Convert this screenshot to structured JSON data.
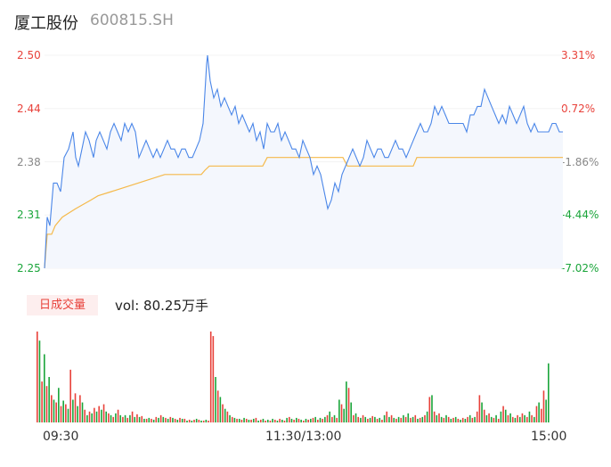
{
  "header": {
    "name": "厦工股份",
    "code": "600815.SH"
  },
  "price_axis": [
    {
      "price": "2.50",
      "pct": "3.31%",
      "price_color": "#e8413a",
      "pct_color": "#e8413a"
    },
    {
      "price": "2.44",
      "pct": "0.72%",
      "price_color": "#e8413a",
      "pct_color": "#e8413a"
    },
    {
      "price": "2.38",
      "pct": "-1.86%",
      "price_color": "#888888",
      "pct_color": "#888888"
    },
    {
      "price": "2.31",
      "pct": "-4.44%",
      "price_color": "#1aa53a",
      "pct_color": "#1aa53a"
    },
    {
      "price": "2.25",
      "pct": "-7.02%",
      "price_color": "#1aa53a",
      "pct_color": "#1aa53a"
    }
  ],
  "volume": {
    "badge": "日成交量",
    "label": "vol: 80.25万手"
  },
  "time_axis": [
    "09:30",
    "11:30/13:00",
    "15:00"
  ],
  "colors": {
    "price_line": "#4a86e8",
    "avg_line": "#f5b94a",
    "up": "#e8413a",
    "down": "#1aa53a",
    "fill": "#f4f7fd"
  },
  "chart_data": {
    "type": "line",
    "ylim": [
      2.25,
      2.5
    ],
    "series": [
      {
        "x": [
          0,
          3,
          6,
          10,
          14,
          18,
          22,
          27,
          32,
          35,
          38,
          42,
          46,
          50,
          55,
          58,
          62,
          66,
          70,
          74,
          78,
          82,
          86,
          90,
          94,
          98,
          102,
          106,
          110,
          114,
          118,
          122,
          126,
          130,
          134,
          138,
          142,
          146,
          150,
          154,
          158,
          162,
          166,
          170,
          174,
          178,
          182,
          183,
          186,
          190,
          194,
          198,
          202,
          206,
          210,
          214,
          218,
          222,
          226,
          230,
          234,
          238,
          242,
          246,
          250,
          254,
          258,
          262,
          266,
          270,
          274,
          278,
          282,
          286,
          290,
          294,
          298,
          302,
          306,
          310,
          314,
          318,
          322,
          326,
          330,
          334,
          338,
          342,
          346,
          350,
          354,
          358,
          362,
          366,
          370,
          374,
          378,
          382,
          386,
          390,
          394,
          398,
          402,
          406,
          410,
          414,
          418,
          422,
          426,
          430,
          434,
          438,
          442,
          446,
          450,
          454,
          458,
          462,
          466,
          470,
          474,
          478,
          482,
          486,
          490,
          494,
          498,
          502,
          506,
          510,
          514,
          518,
          522,
          526,
          530,
          534,
          538,
          542,
          546,
          550,
          554,
          558,
          562,
          566,
          570,
          574,
          578,
          582
        ],
        "values": [
          2.25,
          2.31,
          2.3,
          2.35,
          2.35,
          2.34,
          2.38,
          2.39,
          2.41,
          2.38,
          2.37,
          2.39,
          2.41,
          2.4,
          2.38,
          2.4,
          2.41,
          2.4,
          2.39,
          2.41,
          2.42,
          2.41,
          2.4,
          2.42,
          2.41,
          2.42,
          2.41,
          2.38,
          2.39,
          2.4,
          2.39,
          2.38,
          2.39,
          2.38,
          2.39,
          2.4,
          2.39,
          2.39,
          2.38,
          2.39,
          2.39,
          2.38,
          2.38,
          2.39,
          2.4,
          2.42,
          2.49,
          2.5,
          2.47,
          2.45,
          2.46,
          2.44,
          2.45,
          2.44,
          2.43,
          2.44,
          2.42,
          2.43,
          2.42,
          2.41,
          2.42,
          2.4,
          2.41,
          2.39,
          2.42,
          2.41,
          2.41,
          2.42,
          2.4,
          2.41,
          2.4,
          2.39,
          2.39,
          2.38,
          2.4,
          2.39,
          2.38,
          2.36,
          2.37,
          2.36,
          2.34,
          2.32,
          2.33,
          2.35,
          2.34,
          2.36,
          2.37,
          2.38,
          2.39,
          2.38,
          2.37,
          2.38,
          2.4,
          2.39,
          2.38,
          2.39,
          2.39,
          2.38,
          2.38,
          2.39,
          2.4,
          2.39,
          2.39,
          2.38,
          2.39,
          2.4,
          2.41,
          2.42,
          2.41,
          2.41,
          2.42,
          2.44,
          2.43,
          2.44,
          2.43,
          2.42,
          2.42,
          2.42,
          2.42,
          2.42,
          2.41,
          2.43,
          2.43,
          2.44,
          2.44,
          2.46,
          2.45,
          2.44,
          2.43,
          2.42,
          2.43,
          2.42,
          2.44,
          2.43,
          2.42,
          2.43,
          2.44,
          2.42,
          2.41,
          2.42,
          2.41,
          2.41,
          2.41,
          2.41,
          2.42,
          2.42,
          2.41,
          2.41
        ]
      },
      {
        "x": [
          0,
          3,
          8,
          12,
          20,
          35,
          52,
          60,
          75,
          105,
          135,
          176,
          180,
          185,
          220,
          245,
          250,
          300,
          335,
          340,
          390,
          414,
          418,
          582
        ],
        "values": [
          2.25,
          2.29,
          2.29,
          2.3,
          2.31,
          2.32,
          2.33,
          2.335,
          2.34,
          2.35,
          2.36,
          2.36,
          2.365,
          2.37,
          2.37,
          2.37,
          2.38,
          2.38,
          2.38,
          2.37,
          2.37,
          2.37,
          2.38,
          2.38
        ]
      }
    ],
    "volume": [
      [
        100,
        1
      ],
      [
        90,
        0
      ],
      [
        45,
        1
      ],
      [
        75,
        0
      ],
      [
        40,
        1
      ],
      [
        50,
        0
      ],
      [
        30,
        1
      ],
      [
        25,
        0
      ],
      [
        22,
        1
      ],
      [
        38,
        0
      ],
      [
        18,
        1
      ],
      [
        24,
        0
      ],
      [
        20,
        1
      ],
      [
        15,
        0
      ],
      [
        58,
        1
      ],
      [
        25,
        0
      ],
      [
        32,
        1
      ],
      [
        18,
        0
      ],
      [
        30,
        1
      ],
      [
        22,
        0
      ],
      [
        14,
        1
      ],
      [
        8,
        0
      ],
      [
        12,
        1
      ],
      [
        10,
        0
      ],
      [
        16,
        1
      ],
      [
        12,
        0
      ],
      [
        18,
        1
      ],
      [
        14,
        0
      ],
      [
        20,
        1
      ],
      [
        12,
        0
      ],
      [
        10,
        1
      ],
      [
        8,
        0
      ],
      [
        6,
        1
      ],
      [
        10,
        0
      ],
      [
        14,
        1
      ],
      [
        8,
        0
      ],
      [
        6,
        1
      ],
      [
        8,
        0
      ],
      [
        5,
        1
      ],
      [
        8,
        0
      ],
      [
        12,
        1
      ],
      [
        6,
        0
      ],
      [
        9,
        1
      ],
      [
        6,
        0
      ],
      [
        7,
        1
      ],
      [
        4,
        0
      ],
      [
        4,
        1
      ],
      [
        5,
        0
      ],
      [
        4,
        1
      ],
      [
        3,
        0
      ],
      [
        6,
        1
      ],
      [
        5,
        0
      ],
      [
        8,
        1
      ],
      [
        6,
        0
      ],
      [
        5,
        1
      ],
      [
        4,
        0
      ],
      [
        6,
        1
      ],
      [
        5,
        0
      ],
      [
        4,
        1
      ],
      [
        3,
        0
      ],
      [
        5,
        1
      ],
      [
        4,
        0
      ],
      [
        4,
        1
      ],
      [
        2,
        0
      ],
      [
        3,
        1
      ],
      [
        2,
        0
      ],
      [
        3,
        1
      ],
      [
        4,
        0
      ],
      [
        3,
        1
      ],
      [
        2,
        0
      ],
      [
        2,
        1
      ],
      [
        3,
        0
      ],
      [
        2,
        1
      ],
      [
        100,
        1
      ],
      [
        95,
        1
      ],
      [
        50,
        0
      ],
      [
        35,
        1
      ],
      [
        28,
        0
      ],
      [
        20,
        1
      ],
      [
        15,
        0
      ],
      [
        12,
        1
      ],
      [
        8,
        0
      ],
      [
        6,
        1
      ],
      [
        5,
        0
      ],
      [
        4,
        1
      ],
      [
        4,
        0
      ],
      [
        3,
        1
      ],
      [
        5,
        0
      ],
      [
        4,
        1
      ],
      [
        3,
        0
      ],
      [
        3,
        1
      ],
      [
        4,
        0
      ],
      [
        5,
        1
      ],
      [
        2,
        0
      ],
      [
        3,
        1
      ],
      [
        4,
        0
      ],
      [
        2,
        1
      ],
      [
        3,
        0
      ],
      [
        2,
        1
      ],
      [
        4,
        0
      ],
      [
        3,
        1
      ],
      [
        2,
        0
      ],
      [
        4,
        1
      ],
      [
        3,
        0
      ],
      [
        2,
        1
      ],
      [
        5,
        0
      ],
      [
        6,
        1
      ],
      [
        4,
        0
      ],
      [
        3,
        1
      ],
      [
        5,
        0
      ],
      [
        4,
        1
      ],
      [
        3,
        0
      ],
      [
        2,
        1
      ],
      [
        4,
        0
      ],
      [
        3,
        1
      ],
      [
        4,
        0
      ],
      [
        5,
        1
      ],
      [
        6,
        0
      ],
      [
        3,
        1
      ],
      [
        5,
        0
      ],
      [
        4,
        1
      ],
      [
        6,
        0
      ],
      [
        8,
        1
      ],
      [
        12,
        0
      ],
      [
        6,
        1
      ],
      [
        8,
        0
      ],
      [
        5,
        1
      ],
      [
        25,
        0
      ],
      [
        20,
        1
      ],
      [
        15,
        0
      ],
      [
        45,
        0
      ],
      [
        38,
        1
      ],
      [
        22,
        0
      ],
      [
        8,
        1
      ],
      [
        10,
        0
      ],
      [
        6,
        1
      ],
      [
        5,
        0
      ],
      [
        8,
        1
      ],
      [
        6,
        0
      ],
      [
        4,
        1
      ],
      [
        5,
        0
      ],
      [
        7,
        1
      ],
      [
        6,
        0
      ],
      [
        4,
        1
      ],
      [
        5,
        0
      ],
      [
        3,
        1
      ],
      [
        8,
        0
      ],
      [
        12,
        1
      ],
      [
        6,
        0
      ],
      [
        8,
        1
      ],
      [
        5,
        0
      ],
      [
        4,
        1
      ],
      [
        6,
        0
      ],
      [
        5,
        1
      ],
      [
        8,
        0
      ],
      [
        6,
        1
      ],
      [
        10,
        0
      ],
      [
        5,
        1
      ],
      [
        6,
        0
      ],
      [
        8,
        1
      ],
      [
        4,
        0
      ],
      [
        5,
        1
      ],
      [
        6,
        0
      ],
      [
        8,
        1
      ],
      [
        12,
        0
      ],
      [
        28,
        1
      ],
      [
        30,
        0
      ],
      [
        12,
        1
      ],
      [
        8,
        0
      ],
      [
        10,
        1
      ],
      [
        6,
        0
      ],
      [
        5,
        1
      ],
      [
        8,
        0
      ],
      [
        6,
        1
      ],
      [
        4,
        0
      ],
      [
        5,
        1
      ],
      [
        6,
        0
      ],
      [
        4,
        1
      ],
      [
        3,
        0
      ],
      [
        5,
        1
      ],
      [
        4,
        0
      ],
      [
        6,
        1
      ],
      [
        8,
        0
      ],
      [
        5,
        1
      ],
      [
        6,
        0
      ],
      [
        12,
        1
      ],
      [
        30,
        1
      ],
      [
        22,
        0
      ],
      [
        14,
        1
      ],
      [
        8,
        0
      ],
      [
        10,
        1
      ],
      [
        6,
        0
      ],
      [
        5,
        1
      ],
      [
        8,
        0
      ],
      [
        4,
        1
      ],
      [
        12,
        0
      ],
      [
        18,
        1
      ],
      [
        14,
        0
      ],
      [
        8,
        1
      ],
      [
        10,
        0
      ],
      [
        6,
        1
      ],
      [
        5,
        0
      ],
      [
        8,
        1
      ],
      [
        6,
        0
      ],
      [
        10,
        1
      ],
      [
        8,
        0
      ],
      [
        6,
        1
      ],
      [
        12,
        0
      ],
      [
        8,
        1
      ],
      [
        6,
        0
      ],
      [
        18,
        1
      ],
      [
        22,
        0
      ],
      [
        15,
        1
      ],
      [
        35,
        1
      ],
      [
        25,
        0
      ],
      [
        65,
        0
      ]
    ]
  }
}
